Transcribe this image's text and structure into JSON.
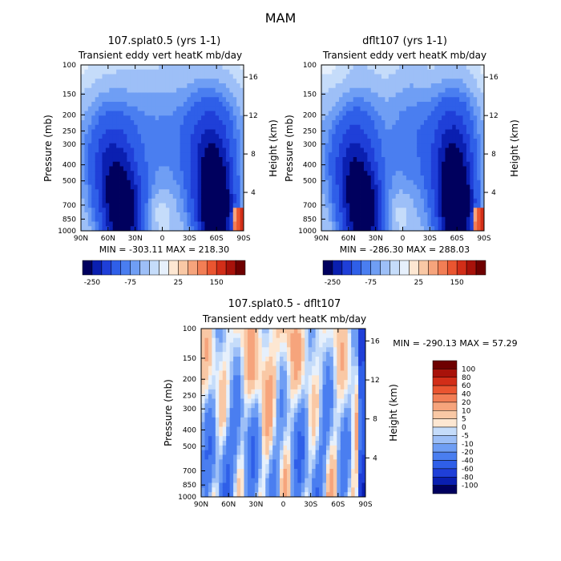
{
  "figure_title": "MAM",
  "chart_data": [
    {
      "type": "heatmap",
      "title": "107.splat0.5 (yrs 1-1)",
      "subtitle": "Transient eddy vert heatK mb/day",
      "xlabel": "",
      "ylabel": "Pressure (mb)",
      "y2label": "Height (km)",
      "x_ticks": [
        "90N",
        "60N",
        "30N",
        "0",
        "30S",
        "60S",
        "90S"
      ],
      "y_ticks": [
        "100",
        "150",
        "200",
        "250",
        "300",
        "400",
        "500",
        "700",
        "850",
        "1000"
      ],
      "y2_ticks": [
        "16",
        "12",
        "8",
        "4"
      ],
      "stats": "MIN = -303.11   MAX = 218.30",
      "colorbar_labels": [
        "-250",
        "-75",
        "25",
        "150"
      ],
      "colorbar_levels": [
        -250,
        -200,
        -150,
        -100,
        -75,
        -50,
        -25,
        -10,
        0,
        10,
        25,
        50,
        75,
        100,
        150,
        200,
        250
      ],
      "variant": "a"
    },
    {
      "type": "heatmap",
      "title": "dflt107 (yrs 1-1)",
      "subtitle": "Transient eddy vert heatK mb/day",
      "xlabel": "",
      "ylabel": "Pressure (mb)",
      "y2label": "Height (km)",
      "x_ticks": [
        "90N",
        "60N",
        "30N",
        "0",
        "30S",
        "60S",
        "90S"
      ],
      "y_ticks": [
        "100",
        "150",
        "200",
        "250",
        "300",
        "400",
        "500",
        "700",
        "850",
        "1000"
      ],
      "y2_ticks": [
        "16",
        "12",
        "8",
        "4"
      ],
      "stats": "MIN = -286.30   MAX = 288.03",
      "colorbar_labels": [
        "-250",
        "-75",
        "25",
        "150"
      ],
      "colorbar_levels": [
        -250,
        -200,
        -150,
        -100,
        -75,
        -50,
        -25,
        -10,
        0,
        10,
        25,
        50,
        75,
        100,
        150,
        200,
        250
      ],
      "variant": "b"
    },
    {
      "type": "heatmap",
      "title": "107.splat0.5 - dflt107",
      "subtitle": "Transient eddy vert heatK mb/day",
      "xlabel": "",
      "ylabel": "Pressure (mb)",
      "y2label": "Height (km)",
      "x_ticks": [
        "90N",
        "60N",
        "30N",
        "0",
        "30S",
        "60S",
        "90S"
      ],
      "y_ticks": [
        "100",
        "150",
        "200",
        "250",
        "300",
        "400",
        "500",
        "700",
        "850",
        "1000"
      ],
      "y2_ticks": [
        "16",
        "12",
        "8",
        "4"
      ],
      "stats": "MIN = -290.13   MAX =  57.29",
      "colorbar_labels": [
        "100",
        "80",
        "60",
        "40",
        "20",
        "10",
        "5",
        "0",
        "-5",
        "-10",
        "-20",
        "-40",
        "-60",
        "-80",
        "-100"
      ],
      "colorbar_levels": [
        100,
        80,
        60,
        40,
        20,
        10,
        5,
        0,
        -5,
        -10,
        -20,
        -40,
        -60,
        -80,
        -100
      ],
      "variant": "diff"
    }
  ],
  "colors": {
    "diverging": [
      "#00005e",
      "#0a1fb0",
      "#1f3fd8",
      "#2f5fe8",
      "#4a7ef0",
      "#6f9ef4",
      "#9dbff7",
      "#c5dcfa",
      "#e6f0fc",
      "#fde7d2",
      "#f9c8a5",
      "#f6a47c",
      "#f27e55",
      "#ea5530",
      "#d22e18",
      "#a8120a",
      "#6e0000"
    ]
  }
}
